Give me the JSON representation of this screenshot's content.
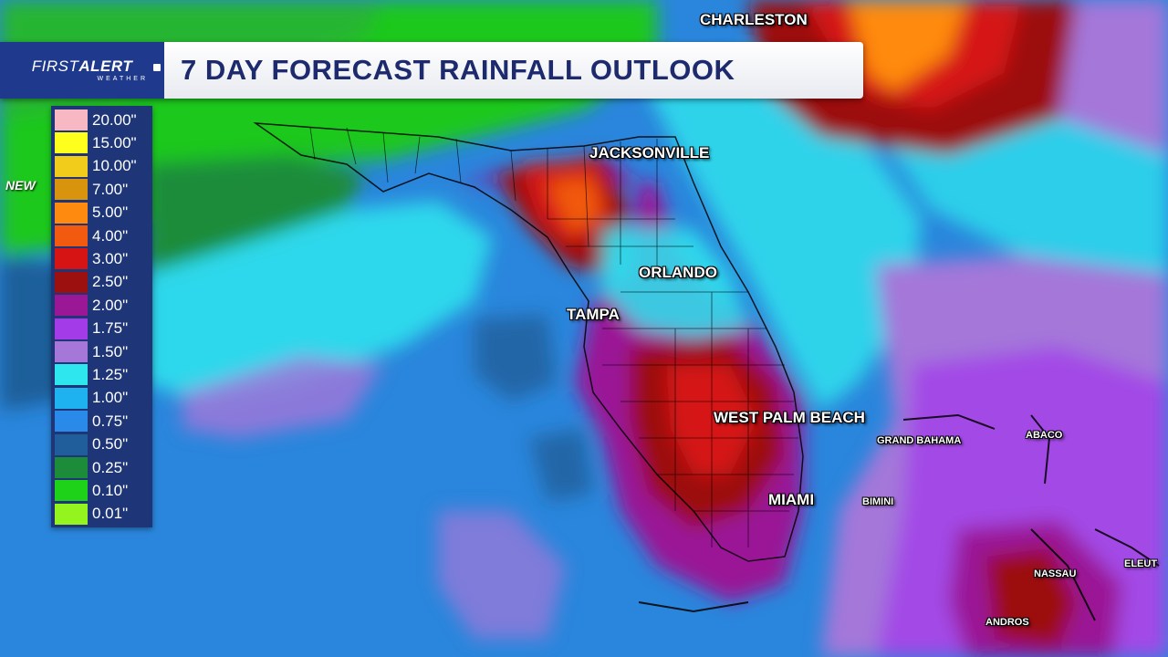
{
  "brand": {
    "logo_main": "FIRST",
    "logo_bold": "ALERT",
    "logo_sub": "WEATHER"
  },
  "title": "7 DAY FORECAST RAINFALL OUTLOOK",
  "new_tag": "NEW",
  "legend": [
    {
      "label": "20.00\"",
      "color": "#f7b8c4"
    },
    {
      "label": "15.00\"",
      "color": "#ffff1e"
    },
    {
      "label": "10.00\"",
      "color": "#f2cc1a"
    },
    {
      "label": "7.00\"",
      "color": "#d9940e"
    },
    {
      "label": "5.00\"",
      "color": "#ff8a10"
    },
    {
      "label": "4.00\"",
      "color": "#f25a10"
    },
    {
      "label": "3.00\"",
      "color": "#d61414"
    },
    {
      "label": "2.50\"",
      "color": "#9c1010"
    },
    {
      "label": "2.00\"",
      "color": "#9a1896"
    },
    {
      "label": "1.75\"",
      "color": "#a33ce8"
    },
    {
      "label": "1.50\"",
      "color": "#a477d9"
    },
    {
      "label": "1.25\"",
      "color": "#2ee6ee"
    },
    {
      "label": "1.00\"",
      "color": "#1fb2f0"
    },
    {
      "label": "0.75\"",
      "color": "#2a8aea"
    },
    {
      "label": "0.50\"",
      "color": "#1f5e9a"
    },
    {
      "label": "0.25\"",
      "color": "#1c8c3a"
    },
    {
      "label": "0.10\"",
      "color": "#1ed21a"
    },
    {
      "label": "0.01\"",
      "color": "#94f51e"
    }
  ],
  "cities": [
    {
      "name": "CHARLESTON",
      "size": "big"
    },
    {
      "name": "JACKSONVILLE",
      "size": "big"
    },
    {
      "name": "ORLANDO",
      "size": "big"
    },
    {
      "name": "TAMPA",
      "size": "big"
    },
    {
      "name": "WEST PALM BEACH",
      "size": "big"
    },
    {
      "name": "MIAMI",
      "size": "big"
    },
    {
      "name": "GRAND BAHAMA",
      "size": "small"
    },
    {
      "name": "ABACO",
      "size": "small"
    },
    {
      "name": "BIMINI",
      "size": "small"
    },
    {
      "name": "NASSAU",
      "size": "small"
    },
    {
      "name": "ELEUT",
      "size": "small"
    },
    {
      "name": "ANDROS",
      "size": "small"
    }
  ]
}
